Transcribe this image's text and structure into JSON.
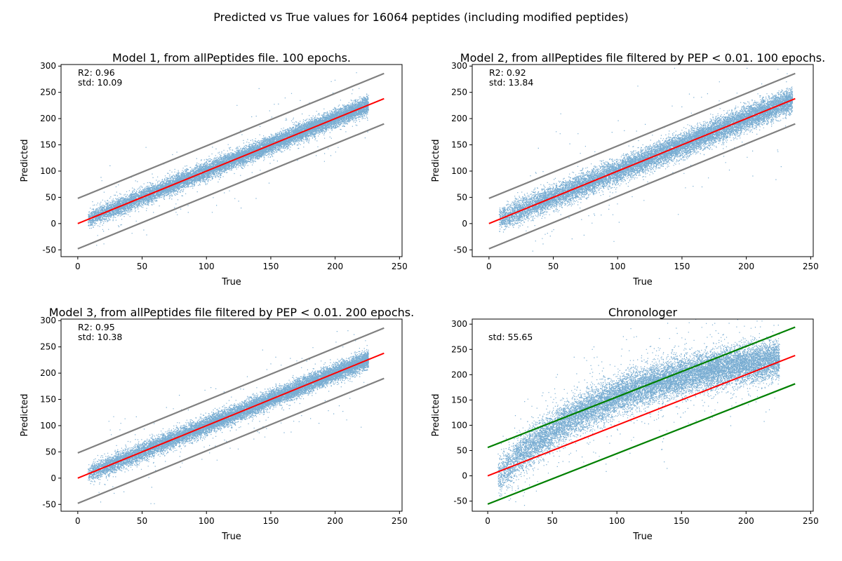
{
  "figure": {
    "title": "Predicted vs True values for 16064 peptides (including modified peptides)"
  },
  "chart_data": [
    {
      "type": "scatter",
      "title": "Model 1, from allPeptides file. 100 epochs.",
      "xlabel": "True",
      "ylabel": "Predicted",
      "xlim": [
        -13,
        252
      ],
      "ylim": [
        -63,
        303
      ],
      "xticks": [
        0,
        50,
        100,
        150,
        200,
        250
      ],
      "yticks": [
        -50,
        0,
        50,
        100,
        150,
        200,
        250,
        300
      ],
      "stats": [
        "R2: 0.96",
        "std: 10.09"
      ],
      "grid": false,
      "scatter_color": "#1f77b4",
      "points": 16064,
      "scatter_spread": 10.09,
      "scatter_curve": "linear",
      "true_range": [
        0,
        238
      ],
      "lines": [
        {
          "role": "identity",
          "color": "#ff0000",
          "x": [
            0,
            238
          ],
          "y": [
            0,
            238
          ]
        },
        {
          "role": "upper bound",
          "color": "#808080",
          "x": [
            0,
            238
          ],
          "y": [
            48,
            286
          ]
        },
        {
          "role": "lower bound",
          "color": "#808080",
          "x": [
            0,
            238
          ],
          "y": [
            -48,
            190
          ]
        }
      ]
    },
    {
      "type": "scatter",
      "title": "Model 2, from allPeptides file filtered by PEP < 0.01. 100 epochs.",
      "xlabel": "True",
      "ylabel": "Predicted",
      "xlim": [
        -13,
        252
      ],
      "ylim": [
        -63,
        303
      ],
      "xticks": [
        0,
        50,
        100,
        150,
        200,
        250
      ],
      "yticks": [
        -50,
        0,
        50,
        100,
        150,
        200,
        250,
        300
      ],
      "stats": [
        "R2: 0.92",
        "std: 13.84"
      ],
      "grid": false,
      "scatter_color": "#1f77b4",
      "points": 16064,
      "scatter_spread": 13.84,
      "scatter_curve": "linear",
      "true_range": [
        0,
        248
      ],
      "lines": [
        {
          "role": "identity",
          "color": "#ff0000",
          "x": [
            0,
            238
          ],
          "y": [
            0,
            238
          ]
        },
        {
          "role": "upper bound",
          "color": "#808080",
          "x": [
            0,
            238
          ],
          "y": [
            48,
            286
          ]
        },
        {
          "role": "lower bound",
          "color": "#808080",
          "x": [
            0,
            238
          ],
          "y": [
            -48,
            190
          ]
        }
      ]
    },
    {
      "type": "scatter",
      "title": "Model 3, from allPeptides file filtered by PEP < 0.01. 200 epochs.",
      "xlabel": "True",
      "ylabel": "Predicted",
      "xlim": [
        -13,
        252
      ],
      "ylim": [
        -63,
        303
      ],
      "xticks": [
        0,
        50,
        100,
        150,
        200,
        250
      ],
      "yticks": [
        -50,
        0,
        50,
        100,
        150,
        200,
        250,
        300
      ],
      "stats": [
        "R2: 0.95",
        "std: 10.38"
      ],
      "grid": false,
      "scatter_color": "#1f77b4",
      "points": 16064,
      "scatter_spread": 10.38,
      "scatter_curve": "linear",
      "true_range": [
        0,
        238
      ],
      "lines": [
        {
          "role": "identity",
          "color": "#ff0000",
          "x": [
            0,
            238
          ],
          "y": [
            0,
            238
          ]
        },
        {
          "role": "upper bound",
          "color": "#808080",
          "x": [
            0,
            238
          ],
          "y": [
            48,
            286
          ]
        },
        {
          "role": "lower bound",
          "color": "#808080",
          "x": [
            0,
            238
          ],
          "y": [
            -48,
            190
          ]
        }
      ]
    },
    {
      "type": "scatter",
      "title": "Chronologer",
      "xlabel": "True",
      "ylabel": "Predicted",
      "xlim": [
        -12,
        252
      ],
      "ylim": [
        -70,
        310
      ],
      "xticks": [
        0,
        50,
        100,
        150,
        200,
        250
      ],
      "yticks": [
        -50,
        0,
        50,
        100,
        150,
        200,
        250,
        300
      ],
      "stats": [
        "std: 55.65"
      ],
      "grid": false,
      "scatter_color": "#1f77b4",
      "points": 16064,
      "scatter_spread": 18,
      "scatter_curve": "saturating",
      "true_range": [
        0,
        238
      ],
      "lines": [
        {
          "role": "identity",
          "color": "#ff0000",
          "x": [
            0,
            238
          ],
          "y": [
            0,
            238
          ]
        },
        {
          "role": "upper bound",
          "color": "#008000",
          "x": [
            0,
            238
          ],
          "y": [
            56,
            294
          ]
        },
        {
          "role": "lower bound",
          "color": "#008000",
          "x": [
            0,
            238
          ],
          "y": [
            -56,
            182
          ]
        }
      ]
    }
  ]
}
